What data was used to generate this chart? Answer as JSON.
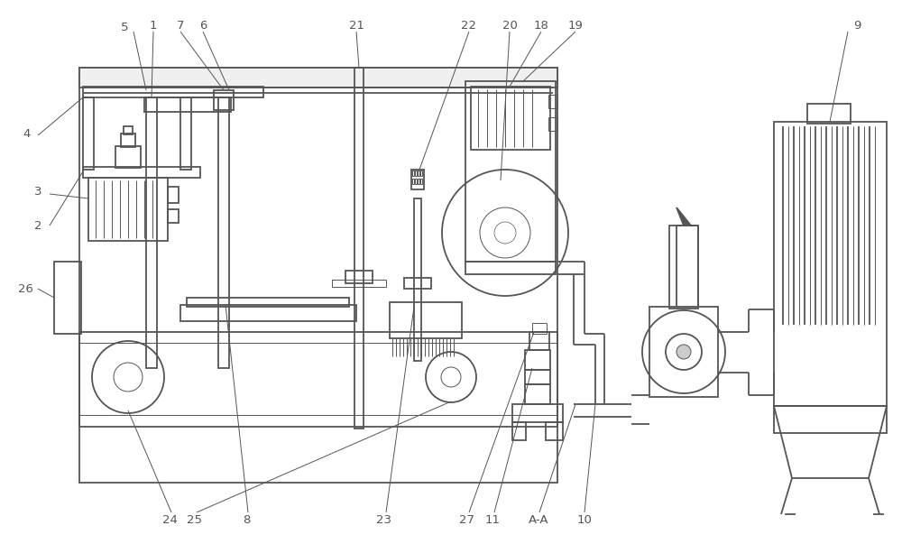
{
  "bg_color": "#ffffff",
  "line_color": "#555555",
  "line_width": 1.3,
  "thin_line": 0.7,
  "label_fontsize": 9.5
}
